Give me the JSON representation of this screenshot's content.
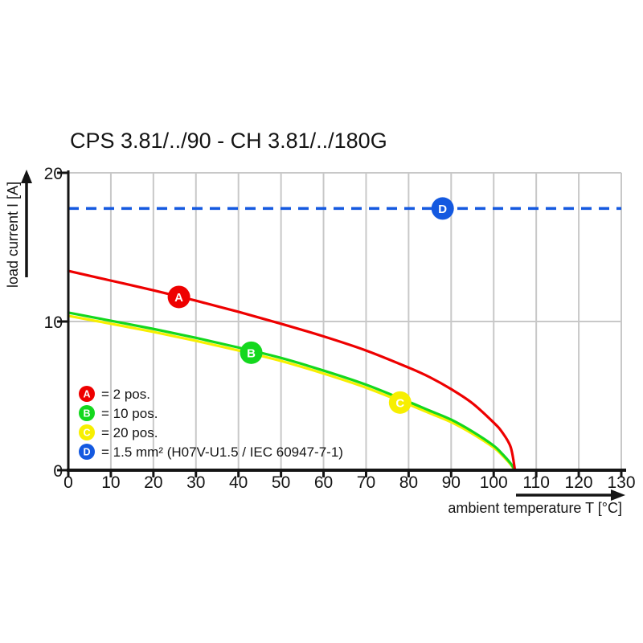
{
  "title": "CPS 3.81/../90 - CH 3.81/../180G",
  "legend": {
    "position": "inside-lower-left",
    "items": [
      {
        "letter": "A",
        "text": "= 2 pos.",
        "color": "#ee0000"
      },
      {
        "letter": "B",
        "text": "= 10 pos.",
        "color": "#14d81e"
      },
      {
        "letter": "C",
        "text": "= 20 pos.",
        "color": "#f7ef00"
      },
      {
        "letter": "D",
        "text": "= 1.5 mm² (H07V-U1.5 / IEC 60947-7-1)",
        "color": "#1459e0"
      }
    ]
  },
  "chart_data": {
    "type": "line",
    "title": "CPS 3.81/../90 - CH 3.81/../180G",
    "xlabel": "ambient temperature T [°C]",
    "ylabel": "load current I [A]",
    "xlim": [
      0,
      130
    ],
    "ylim": [
      0,
      20
    ],
    "x_ticks": [
      0,
      10,
      20,
      30,
      40,
      50,
      60,
      70,
      80,
      90,
      100,
      110,
      120,
      130
    ],
    "y_ticks": [
      0,
      10,
      20
    ],
    "grid": {
      "vertical_every": 10,
      "horizontal_at": [
        10,
        20
      ],
      "color": "#c8c8c8"
    },
    "legend_position": "inside-lower-left",
    "series": [
      {
        "id": "A",
        "label": "2 pos.",
        "color": "#ee0000",
        "style": "solid",
        "points": [
          [
            0,
            13.4
          ],
          [
            10,
            12.75
          ],
          [
            20,
            12.1
          ],
          [
            30,
            11.4
          ],
          [
            40,
            10.65
          ],
          [
            50,
            9.85
          ],
          [
            60,
            9.0
          ],
          [
            70,
            8.05
          ],
          [
            80,
            6.9
          ],
          [
            85,
            6.25
          ],
          [
            90,
            5.45
          ],
          [
            95,
            4.5
          ],
          [
            100,
            3.2
          ],
          [
            102,
            2.55
          ],
          [
            104,
            1.55
          ],
          [
            105,
            0
          ]
        ],
        "marker": {
          "letter": "A",
          "t": 26,
          "i": 11.65
        }
      },
      {
        "id": "B",
        "label": "10 pos.",
        "color": "#14d81e",
        "style": "solid",
        "points": [
          [
            0,
            10.6
          ],
          [
            10,
            10.05
          ],
          [
            20,
            9.5
          ],
          [
            30,
            8.9
          ],
          [
            40,
            8.25
          ],
          [
            50,
            7.55
          ],
          [
            60,
            6.7
          ],
          [
            70,
            5.75
          ],
          [
            80,
            4.6
          ],
          [
            85,
            4.0
          ],
          [
            90,
            3.4
          ],
          [
            95,
            2.6
          ],
          [
            100,
            1.65
          ],
          [
            102,
            1.1
          ],
          [
            104,
            0.45
          ],
          [
            105,
            0
          ]
        ],
        "marker": {
          "letter": "B",
          "t": 43,
          "i": 7.9
        }
      },
      {
        "id": "C",
        "label": "20 pos.",
        "color": "#f7ef00",
        "style": "solid",
        "points": [
          [
            0,
            10.38
          ],
          [
            10,
            9.85
          ],
          [
            20,
            9.3
          ],
          [
            30,
            8.7
          ],
          [
            40,
            8.05
          ],
          [
            50,
            7.35
          ],
          [
            60,
            6.5
          ],
          [
            70,
            5.55
          ],
          [
            80,
            4.42
          ],
          [
            85,
            3.83
          ],
          [
            90,
            3.23
          ],
          [
            95,
            2.45
          ],
          [
            100,
            1.52
          ],
          [
            102,
            1.0
          ],
          [
            104,
            0.38
          ],
          [
            104.9,
            0
          ]
        ],
        "marker": {
          "letter": "C",
          "t": 78,
          "i": 4.55
        }
      },
      {
        "id": "D",
        "label": "1.5 mm² (H07V-U1.5 / IEC 60947-7-1)",
        "color": "#1459e0",
        "style": "dashed",
        "points": [
          [
            0,
            17.6
          ],
          [
            130,
            17.6
          ]
        ],
        "marker": {
          "letter": "D",
          "t": 88,
          "i": 17.6
        }
      }
    ]
  }
}
